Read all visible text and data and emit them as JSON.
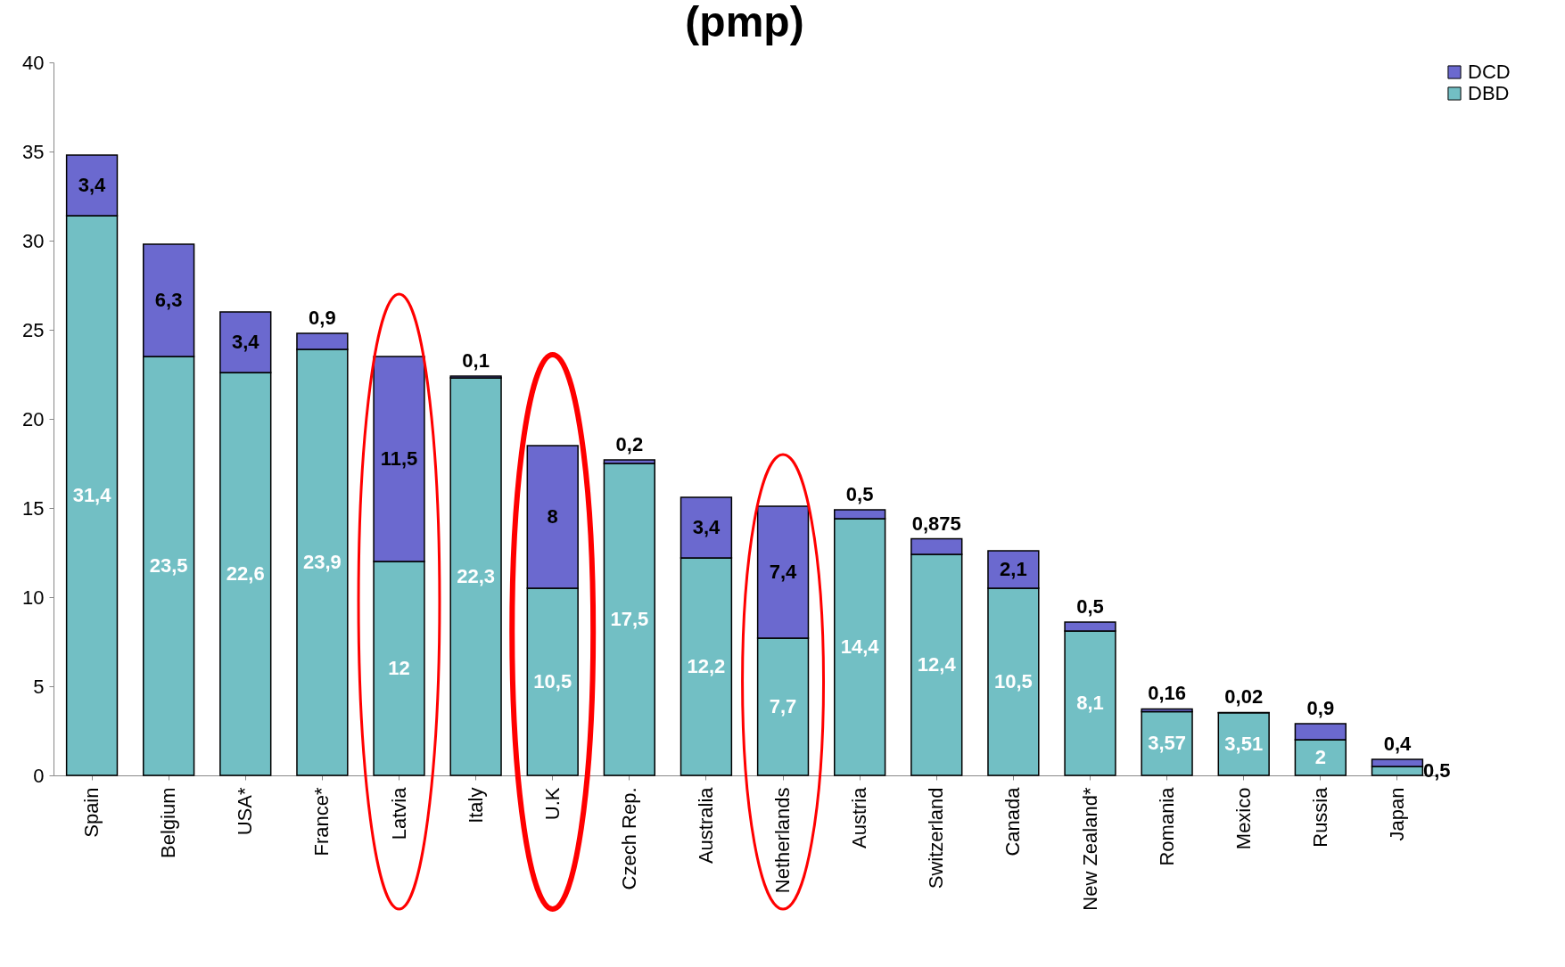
{
  "chart_data": {
    "type": "bar",
    "title": "(pmp)",
    "stacked": true,
    "categories": [
      "Spain",
      "Belgium",
      "USA*",
      "France*",
      "Latvia",
      "Italy",
      "U.K",
      "Czech Rep.",
      "Australia",
      "Netherlands",
      "Austria",
      "Switzerland",
      "Canada",
      "New Zealand*",
      "Romania",
      "Mexico",
      "Russia",
      "Japan"
    ],
    "series": [
      {
        "name": "DBD",
        "color": "#72bfc4",
        "values": [
          31.4,
          23.5,
          22.6,
          23.9,
          12,
          22.3,
          10.5,
          17.5,
          12.2,
          7.7,
          14.4,
          12.4,
          10.5,
          8.1,
          3.57,
          3.51,
          2,
          0.5
        ],
        "value_labels": [
          "31,4",
          "23,5",
          "22,6",
          "23,9",
          "12",
          "22,3",
          "10,5",
          "17,5",
          "12,2",
          "7,7",
          "14,4",
          "12,4",
          "10,5",
          "8,1",
          "3,57",
          "3,51",
          "2",
          "0,5"
        ]
      },
      {
        "name": "DCD",
        "color": "#6b69cf",
        "values": [
          3.4,
          6.3,
          3.4,
          0.9,
          11.5,
          0.1,
          8,
          0.2,
          3.4,
          7.4,
          0.5,
          0.875,
          2.1,
          0.5,
          0.16,
          0.02,
          0.9,
          0.4
        ],
        "value_labels": [
          "3,4",
          "6,3",
          "3,4",
          "0,9",
          "11,5",
          "0,1",
          "8",
          "0,2",
          "3,4",
          "7,4",
          "0,5",
          "0,875",
          "2,1",
          "0,5",
          "0,16",
          "0,02",
          "0,9",
          "0,4"
        ]
      }
    ],
    "ylim": [
      0,
      40
    ],
    "yticks": [
      0,
      5,
      10,
      15,
      20,
      25,
      30,
      35,
      40
    ],
    "grid": false,
    "legend": "right"
  }
}
